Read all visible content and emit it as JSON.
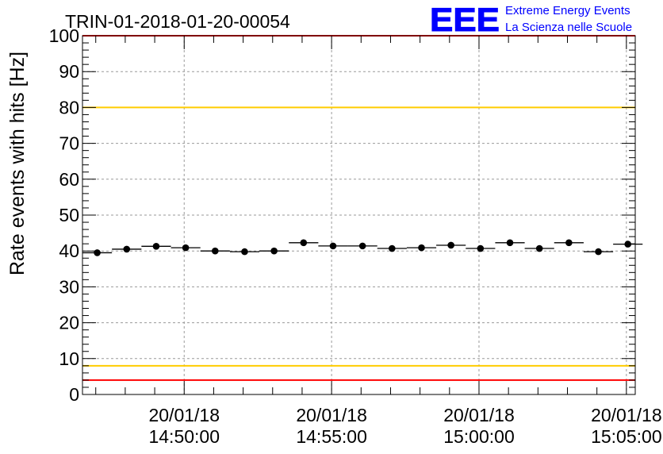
{
  "chart_data": {
    "type": "scatter",
    "title": "TRIN-01-2018-01-20-00054",
    "xlabel": "",
    "ylabel": "Rate events with hits [Hz]",
    "ylim": [
      0,
      100
    ],
    "yticks": [
      "0",
      "10",
      "20",
      "30",
      "40",
      "50",
      "60",
      "70",
      "80",
      "90",
      "100"
    ],
    "xlim_minutes": [
      0,
      18.75
    ],
    "xtick_dates": [
      "20/01/18",
      "20/01/18",
      "20/01/18",
      "20/01/18"
    ],
    "xtick_times": [
      "14:50:00",
      "14:55:00",
      "15:00:00",
      "15:05:00"
    ],
    "xtick_minutes": [
      3.45,
      8.45,
      13.45,
      18.45
    ],
    "bin_width_minutes": 1.0,
    "x_minutes": [
      0.5,
      1.5,
      2.5,
      3.5,
      4.5,
      5.5,
      6.5,
      7.5,
      8.5,
      9.5,
      10.5,
      11.5,
      12.5,
      13.5,
      14.5,
      15.5,
      16.5,
      17.5,
      18.5
    ],
    "values": [
      39.5,
      40.5,
      41.3,
      40.9,
      40.0,
      39.8,
      40.0,
      42.3,
      41.4,
      41.4,
      40.7,
      40.9,
      41.6,
      40.7,
      42.3,
      40.7,
      42.3,
      39.8,
      41.9
    ],
    "reference_lines": [
      {
        "value": 100,
        "color": "#ff0000"
      },
      {
        "value": 80,
        "color": "#ffcc00"
      },
      {
        "value": 8,
        "color": "#ffcc00"
      },
      {
        "value": 4,
        "color": "#ff0000"
      }
    ],
    "grid": true
  },
  "logo": {
    "mark": "EEE",
    "line1": "Extreme Energy Events",
    "line2": "La Scienza nelle Scuole",
    "color": "#0000ff"
  }
}
